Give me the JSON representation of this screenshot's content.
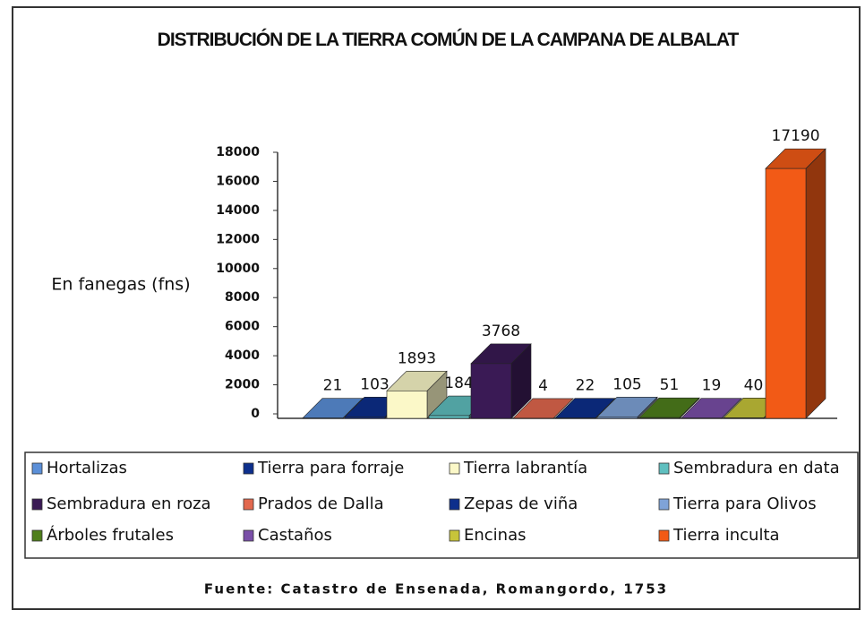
{
  "chart_data": {
    "type": "bar3d",
    "title": "DISTRIBUCIÓN DE LA TIERRA COMÚN DE LA CAMPANA DE ALBALAT",
    "y_label": "En fanegas (fns)",
    "source": "Fuente: Catastro de Ensenada, Romangordo, 1753",
    "categories": [
      "Hortalizas",
      "Tierra para forraje",
      "Tierra labrantía",
      "Sembradura en data",
      "Sembradura en roza",
      "Prados de Dalla",
      "Zepas de viña",
      "Tierra para Olivos",
      "Árboles frutales",
      "Castaños",
      "Encinas",
      "Tierra inculta"
    ],
    "values": [
      21,
      103,
      1893,
      184,
      3768,
      4,
      22,
      105,
      51,
      19,
      40,
      17190
    ],
    "colors": [
      "#5b8fd8",
      "#0d2f8c",
      "#fbf8c8",
      "#5fbfbf",
      "#3a1a55",
      "#e2684e",
      "#0d2f8c",
      "#7fa3d8",
      "#4f7f1c",
      "#7a4fa8",
      "#c7c43a",
      "#f25a16"
    ],
    "ylim": [
      0,
      18000
    ],
    "yticks": [
      0,
      2000,
      4000,
      6000,
      8000,
      10000,
      12000,
      14000,
      16000,
      18000
    ]
  }
}
